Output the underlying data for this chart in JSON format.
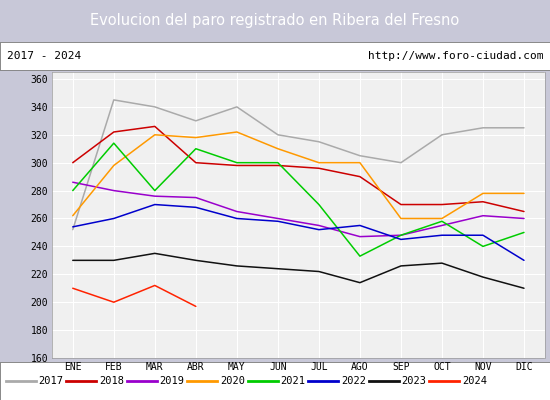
{
  "title": "Evolucion del paro registrado en Ribera del Fresno",
  "title_bg": "#5b9bd5",
  "subtitle_left": "2017 - 2024",
  "subtitle_right": "http://www.foro-ciudad.com",
  "months": [
    "ENE",
    "FEB",
    "MAR",
    "ABR",
    "MAY",
    "JUN",
    "JUL",
    "AGO",
    "SEP",
    "OCT",
    "NOV",
    "DIC"
  ],
  "ylim": [
    160,
    365
  ],
  "yticks": [
    160,
    180,
    200,
    220,
    240,
    260,
    280,
    300,
    320,
    340,
    360
  ],
  "series": {
    "2017": {
      "color": "#aaaaaa",
      "data": [
        252,
        345,
        340,
        330,
        340,
        320,
        315,
        305,
        300,
        320,
        325,
        325
      ]
    },
    "2018": {
      "color": "#cc0000",
      "data": [
        300,
        322,
        326,
        300,
        298,
        298,
        296,
        290,
        270,
        270,
        272,
        265
      ]
    },
    "2019": {
      "color": "#9900cc",
      "data": [
        286,
        280,
        276,
        275,
        265,
        260,
        255,
        247,
        248,
        255,
        262,
        260
      ]
    },
    "2020": {
      "color": "#ff9900",
      "data": [
        262,
        298,
        320,
        318,
        322,
        310,
        300,
        300,
        260,
        260,
        278,
        278
      ]
    },
    "2021": {
      "color": "#00cc00",
      "data": [
        280,
        314,
        280,
        310,
        300,
        300,
        270,
        233,
        248,
        258,
        240,
        250
      ]
    },
    "2022": {
      "color": "#0000cc",
      "data": [
        254,
        260,
        270,
        268,
        260,
        258,
        252,
        255,
        245,
        248,
        248,
        230
      ]
    },
    "2023": {
      "color": "#111111",
      "data": [
        230,
        230,
        235,
        230,
        226,
        224,
        222,
        214,
        226,
        228,
        218,
        210
      ]
    },
    "2024": {
      "color": "#ff2200",
      "data": [
        210,
        200,
        212,
        197,
        null,
        null,
        null,
        null,
        null,
        null,
        null,
        null
      ]
    }
  },
  "bg_color": "#f0f0f0",
  "fig_bg": "#e8e8e8"
}
